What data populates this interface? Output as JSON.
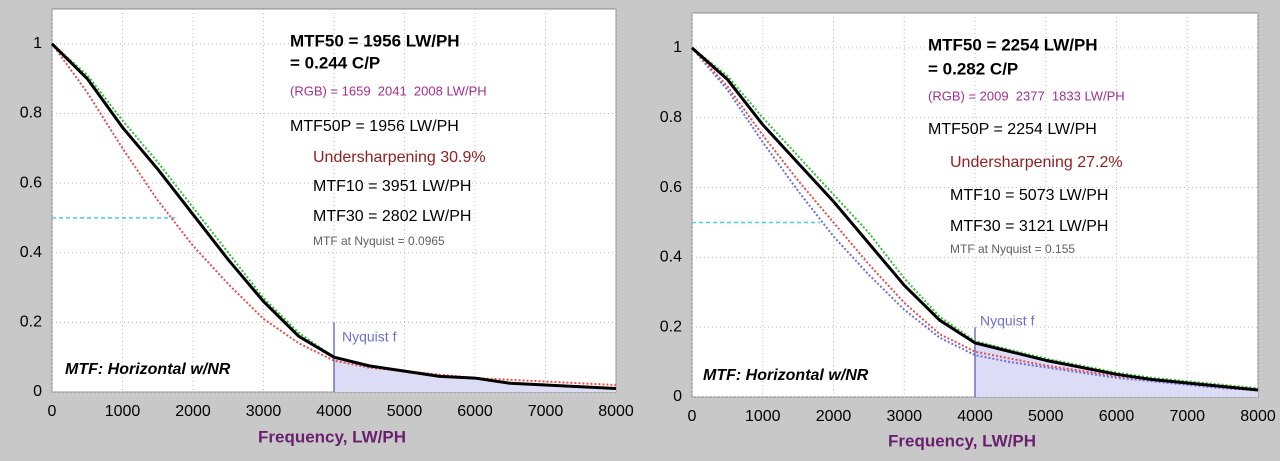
{
  "chart_data": [
    {
      "type": "line",
      "xlabel": "Frequency, LW/PH",
      "x": [
        0,
        500,
        1000,
        1500,
        2000,
        2500,
        3000,
        3500,
        4000,
        4500,
        5000,
        5500,
        6000,
        6500,
        7000,
        7500,
        8000
      ],
      "series": [
        {
          "color": "#e05050",
          "dash": true,
          "values": [
            1.0,
            0.86,
            0.7,
            0.55,
            0.42,
            0.31,
            0.21,
            0.14,
            0.09,
            0.07,
            0.06,
            0.05,
            0.04,
            0.035,
            0.03,
            0.025,
            0.02
          ]
        },
        {
          "color": "#30c030",
          "dash": true,
          "values": [
            1.0,
            0.91,
            0.78,
            0.66,
            0.53,
            0.4,
            0.27,
            0.17,
            0.1,
            0.075,
            0.06,
            0.045,
            0.04,
            0.025,
            0.02,
            0.015,
            0.01
          ]
        },
        {
          "color": "#000000",
          "dash": false,
          "values": [
            1.0,
            0.9,
            0.76,
            0.64,
            0.51,
            0.38,
            0.26,
            0.16,
            0.1,
            0.075,
            0.06,
            0.045,
            0.04,
            0.025,
            0.02,
            0.015,
            0.01
          ]
        }
      ],
      "xlim": [
        0,
        8000
      ],
      "ylim": [
        0,
        1.1
      ],
      "xticks": [
        0,
        1000,
        2000,
        3000,
        4000,
        5000,
        6000,
        7000,
        8000
      ],
      "yticks": [
        0,
        0.2,
        0.4,
        0.6,
        0.8,
        1
      ],
      "grid": true,
      "mtf50_line": {
        "y": 0.5,
        "x": [
          0,
          1745
        ],
        "color": "#40d0e0"
      },
      "nyquist": {
        "x": 4000,
        "top": 0.2,
        "label": "Nyquist f",
        "color": "#7070c8",
        "fill": "#dcdcf6"
      },
      "corner_label": "MTF: Horizontal w/NR",
      "annotations": [
        {
          "text": "MTF50 = 1956 LW/PH",
          "color": "#000000"
        },
        {
          "text": "= 0.244 C/P",
          "color": "#000000"
        },
        {
          "text": "(RGB) = 1659  2041  2008 LW/PH",
          "color": "#a03090"
        },
        {
          "text": "MTF50P = 1956 LW/PH",
          "color": "#000000"
        },
        {
          "text": "Undersharpening 30.9%",
          "color": "#902020"
        },
        {
          "text": "MTF10 = 3951 LW/PH",
          "color": "#000000"
        },
        {
          "text": "MTF30 = 2802 LW/PH",
          "color": "#000000"
        },
        {
          "text": "MTF at Nyquist = 0.0965",
          "color": "#606060"
        }
      ]
    },
    {
      "type": "line",
      "xlabel": "Frequency, LW/PH",
      "x": [
        0,
        500,
        1000,
        1500,
        2000,
        2500,
        3000,
        3500,
        4000,
        4500,
        5000,
        5500,
        6000,
        6500,
        7000,
        7500,
        8000
      ],
      "series": [
        {
          "color": "#7070d0",
          "dash": true,
          "values": [
            1.0,
            0.88,
            0.73,
            0.59,
            0.46,
            0.35,
            0.25,
            0.17,
            0.12,
            0.1,
            0.085,
            0.07,
            0.055,
            0.045,
            0.035,
            0.025,
            0.02
          ]
        },
        {
          "color": "#e05050",
          "dash": true,
          "values": [
            1.0,
            0.89,
            0.75,
            0.62,
            0.5,
            0.38,
            0.27,
            0.18,
            0.13,
            0.11,
            0.09,
            0.075,
            0.06,
            0.05,
            0.04,
            0.03,
            0.02
          ]
        },
        {
          "color": "#30c030",
          "dash": true,
          "values": [
            1.0,
            0.92,
            0.8,
            0.69,
            0.58,
            0.47,
            0.34,
            0.23,
            0.16,
            0.135,
            0.11,
            0.09,
            0.07,
            0.055,
            0.045,
            0.035,
            0.025
          ]
        },
        {
          "color": "#000000",
          "dash": false,
          "values": [
            1.0,
            0.91,
            0.78,
            0.67,
            0.56,
            0.44,
            0.32,
            0.22,
            0.155,
            0.13,
            0.105,
            0.085,
            0.065,
            0.05,
            0.04,
            0.03,
            0.02
          ]
        }
      ],
      "xlim": [
        0,
        8000
      ],
      "ylim": [
        0,
        1.1
      ],
      "xticks": [
        0,
        1000,
        2000,
        3000,
        4000,
        5000,
        6000,
        7000,
        8000
      ],
      "yticks": [
        0,
        0.2,
        0.4,
        0.6,
        0.8,
        1
      ],
      "grid": true,
      "mtf50_line": {
        "y": 0.5,
        "x": [
          0,
          1810
        ],
        "color": "#40d0e0"
      },
      "nyquist": {
        "x": 4000,
        "top": 0.2,
        "label": "Nyquist f",
        "color": "#7070c8",
        "fill": "#dcdcf6"
      },
      "corner_label": "MTF: Horizontal w/NR",
      "annotations": [
        {
          "text": "MTF50 = 2254 LW/PH",
          "color": "#000000"
        },
        {
          "text": "= 0.282 C/P",
          "color": "#000000"
        },
        {
          "text": "(RGB) = 2009  2377  1833 LW/PH",
          "color": "#a03090"
        },
        {
          "text": "MTF50P = 2254 LW/PH",
          "color": "#000000"
        },
        {
          "text": "Undersharpening 27.2%",
          "color": "#902020"
        },
        {
          "text": "MTF10 = 5073 LW/PH",
          "color": "#000000"
        },
        {
          "text": "MTF30 = 3121 LW/PH",
          "color": "#000000"
        },
        {
          "text": "MTF at Nyquist = 0.155",
          "color": "#606060"
        }
      ]
    }
  ]
}
